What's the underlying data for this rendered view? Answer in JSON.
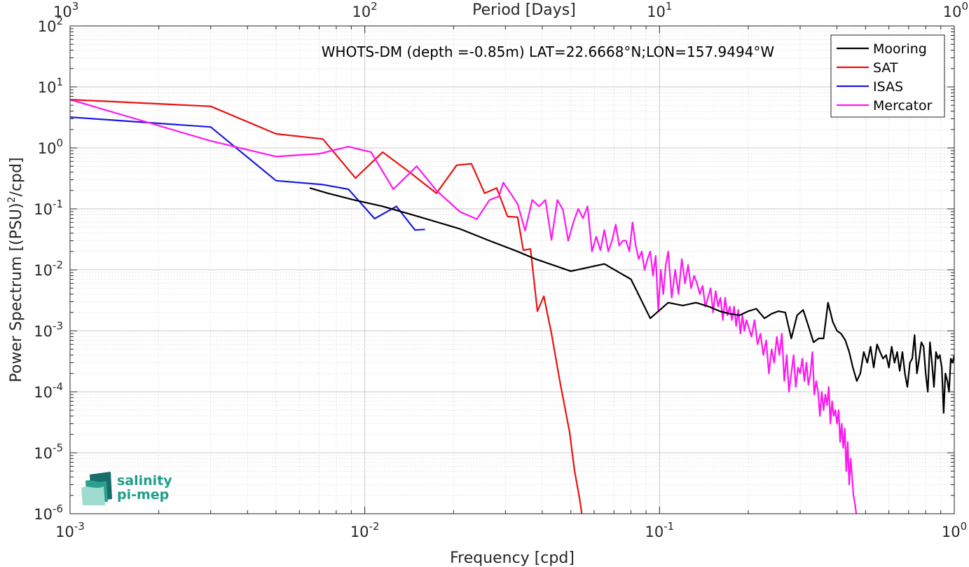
{
  "chart_data": {
    "type": "line",
    "title": "WHOTS-DM (depth =-0.85m) LAT=22.6668°N;LON=157.9494°W",
    "xlabel": "Frequency [cpd]",
    "ylabel_main": "Power Spectrum [(PSU)",
    "ylabel_sup": "2",
    "ylabel_tail": "/cpd]",
    "x2label": "Period [Days]",
    "xscale": "log",
    "yscale": "log",
    "xlim": [
      0.001,
      1
    ],
    "ylim": [
      1e-06,
      100
    ],
    "grid": true,
    "legend_position": "top-right",
    "xticks": [
      {
        "base": "10",
        "exp": "-3"
      },
      {
        "base": "10",
        "exp": "-2"
      },
      {
        "base": "10",
        "exp": "-1"
      },
      {
        "base": "10",
        "exp": "0"
      }
    ],
    "x2ticks": [
      {
        "base": "10",
        "exp": "3"
      },
      {
        "base": "10",
        "exp": "2"
      },
      {
        "base": "10",
        "exp": "1"
      },
      {
        "base": "10",
        "exp": "0"
      }
    ],
    "yticks": [
      {
        "base": "10",
        "exp": "-6"
      },
      {
        "base": "10",
        "exp": "-5"
      },
      {
        "base": "10",
        "exp": "-4"
      },
      {
        "base": "10",
        "exp": "-3"
      },
      {
        "base": "10",
        "exp": "-2"
      },
      {
        "base": "10",
        "exp": "-1"
      },
      {
        "base": "10",
        "exp": "0"
      },
      {
        "base": "10",
        "exp": "1"
      },
      {
        "base": "10",
        "exp": "2"
      }
    ],
    "series": [
      {
        "name": "Mooring",
        "color": "#000000",
        "points": [
          [
            0.0065,
            0.22
          ],
          [
            0.0075,
            0.18
          ],
          [
            0.0092,
            0.14
          ],
          [
            0.0115,
            0.11
          ],
          [
            0.0145,
            0.08
          ],
          [
            0.021,
            0.047
          ],
          [
            0.0265,
            0.03
          ],
          [
            0.033,
            0.02
          ],
          [
            0.038,
            0.015
          ],
          [
            0.05,
            0.0095
          ],
          [
            0.065,
            0.0125
          ],
          [
            0.08,
            0.007
          ],
          [
            0.093,
            0.0016
          ],
          [
            0.107,
            0.0029
          ],
          [
            0.12,
            0.0026
          ],
          [
            0.133,
            0.0029
          ],
          [
            0.147,
            0.0025
          ],
          [
            0.16,
            0.0021
          ],
          [
            0.173,
            0.0019
          ],
          [
            0.187,
            0.0018
          ],
          [
            0.2,
            0.0021
          ],
          [
            0.213,
            0.0023
          ],
          [
            0.227,
            0.0016
          ],
          [
            0.24,
            0.0019
          ],
          [
            0.253,
            0.0021
          ],
          [
            0.267,
            0.002
          ],
          [
            0.28,
            0.00075
          ],
          [
            0.293,
            0.0018
          ],
          [
            0.307,
            0.0022
          ],
          [
            0.32,
            0.0012
          ],
          [
            0.333,
            0.00065
          ],
          [
            0.347,
            0.00075
          ],
          [
            0.36,
            0.00075
          ],
          [
            0.373,
            0.0029
          ],
          [
            0.387,
            0.0014
          ],
          [
            0.4,
            0.001
          ],
          [
            0.413,
            0.0009
          ],
          [
            0.427,
            0.0007
          ],
          [
            0.44,
            0.00045
          ],
          [
            0.453,
            0.00025
          ],
          [
            0.467,
            0.00015
          ],
          [
            0.48,
            0.0002
          ],
          [
            0.493,
            0.00045
          ],
          [
            0.507,
            0.0003
          ],
          [
            0.52,
            0.00055
          ],
          [
            0.533,
            0.00025
          ],
          [
            0.547,
            0.0006
          ],
          [
            0.56,
            0.00045
          ],
          [
            0.573,
            0.00035
          ],
          [
            0.587,
            0.0004
          ],
          [
            0.6,
            0.00025
          ],
          [
            0.613,
            0.00055
          ],
          [
            0.627,
            0.0003
          ],
          [
            0.64,
            0.00045
          ],
          [
            0.653,
            0.00022
          ],
          [
            0.667,
            0.00045
          ],
          [
            0.68,
            0.0002
          ],
          [
            0.693,
            0.00012
          ],
          [
            0.707,
            0.0003
          ],
          [
            0.72,
            0.00035
          ],
          [
            0.733,
            0.00085
          ],
          [
            0.747,
            0.0002
          ],
          [
            0.76,
            0.00035
          ],
          [
            0.773,
            0.00065
          ],
          [
            0.787,
            0.00055
          ],
          [
            0.8,
            0.0002
          ],
          [
            0.813,
            0.0001
          ],
          [
            0.827,
            0.00065
          ],
          [
            0.84,
            0.0003
          ],
          [
            0.853,
            0.00012
          ],
          [
            0.867,
            0.00045
          ],
          [
            0.88,
            0.00035
          ],
          [
            0.893,
            0.0004
          ],
          [
            0.907,
            0.00025
          ],
          [
            0.92,
            4.5e-05
          ],
          [
            0.933,
            0.0002
          ],
          [
            0.947,
            0.00015
          ],
          [
            0.96,
            0.0001
          ],
          [
            0.973,
            0.00035
          ],
          [
            0.987,
            0.0003
          ],
          [
            1.0,
            0.0004
          ]
        ]
      },
      {
        "name": "SAT",
        "color": "#e8120f",
        "points": [
          [
            0.001,
            6.2
          ],
          [
            0.003,
            4.8
          ],
          [
            0.005,
            1.7
          ],
          [
            0.0072,
            1.4
          ],
          [
            0.0093,
            0.32
          ],
          [
            0.0115,
            0.85
          ],
          [
            0.014,
            0.42
          ],
          [
            0.0175,
            0.18
          ],
          [
            0.0205,
            0.52
          ],
          [
            0.023,
            0.55
          ],
          [
            0.0255,
            0.18
          ],
          [
            0.028,
            0.22
          ],
          [
            0.0305,
            0.075
          ],
          [
            0.033,
            0.073
          ],
          [
            0.0345,
            0.021
          ],
          [
            0.0365,
            0.022
          ],
          [
            0.0385,
            0.0021
          ],
          [
            0.0405,
            0.0037
          ],
          [
            0.043,
            0.0009
          ],
          [
            0.046,
            0.00014
          ],
          [
            0.0495,
            2.2e-05
          ],
          [
            0.0515,
            5e-06
          ],
          [
            0.0535,
            1.8e-06
          ],
          [
            0.0545,
            1e-06
          ]
        ]
      },
      {
        "name": "ISAS",
        "color": "#1a1ae0",
        "points": [
          [
            0.001,
            3.2
          ],
          [
            0.003,
            2.2
          ],
          [
            0.005,
            0.29
          ],
          [
            0.0072,
            0.25
          ],
          [
            0.0088,
            0.21
          ],
          [
            0.0108,
            0.069
          ],
          [
            0.0128,
            0.11
          ],
          [
            0.0148,
            0.045
          ],
          [
            0.016,
            0.046
          ]
        ]
      },
      {
        "name": "Mercator",
        "color": "#ff17f0",
        "points": [
          [
            0.001,
            6.2
          ],
          [
            0.003,
            1.3
          ],
          [
            0.005,
            0.72
          ],
          [
            0.007,
            0.8
          ],
          [
            0.0088,
            1.05
          ],
          [
            0.0105,
            0.85
          ],
          [
            0.0125,
            0.21
          ],
          [
            0.015,
            0.5
          ],
          [
            0.0175,
            0.2
          ],
          [
            0.021,
            0.09
          ],
          [
            0.024,
            0.068
          ],
          [
            0.0265,
            0.14
          ],
          [
            0.0285,
            0.16
          ],
          [
            0.0295,
            0.27
          ],
          [
            0.031,
            0.19
          ],
          [
            0.033,
            0.12
          ],
          [
            0.035,
            0.044
          ],
          [
            0.037,
            0.14
          ],
          [
            0.039,
            0.11
          ],
          [
            0.041,
            0.14
          ],
          [
            0.043,
            0.031
          ],
          [
            0.045,
            0.14
          ],
          [
            0.047,
            0.097
          ],
          [
            0.049,
            0.03
          ],
          [
            0.051,
            0.06
          ],
          [
            0.053,
            0.1
          ],
          [
            0.055,
            0.07
          ],
          [
            0.057,
            0.11
          ],
          [
            0.059,
            0.02
          ],
          [
            0.061,
            0.035
          ],
          [
            0.063,
            0.021
          ],
          [
            0.065,
            0.045
          ],
          [
            0.067,
            0.02
          ],
          [
            0.069,
            0.03
          ],
          [
            0.071,
            0.055
          ],
          [
            0.073,
            0.025
          ],
          [
            0.075,
            0.03
          ],
          [
            0.077,
            0.03
          ],
          [
            0.079,
            0.02
          ],
          [
            0.081,
            0.06
          ],
          [
            0.083,
            0.025
          ],
          [
            0.085,
            0.015
          ],
          [
            0.087,
            0.02
          ],
          [
            0.089,
            0.01
          ],
          [
            0.091,
            0.015
          ],
          [
            0.093,
            0.02
          ],
          [
            0.095,
            0.008
          ],
          [
            0.097,
            0.017
          ],
          [
            0.099,
            0.0022
          ],
          [
            0.101,
            0.01
          ],
          [
            0.103,
            0.004
          ],
          [
            0.105,
            0.012
          ],
          [
            0.107,
            0.02
          ],
          [
            0.11,
            0.0035
          ],
          [
            0.113,
            0.01
          ],
          [
            0.116,
            0.004
          ],
          [
            0.119,
            0.015
          ],
          [
            0.122,
            0.006
          ],
          [
            0.125,
            0.012
          ],
          [
            0.128,
            0.005
          ],
          [
            0.131,
            0.008
          ],
          [
            0.134,
            0.006
          ],
          [
            0.137,
            0.004
          ],
          [
            0.14,
            0.0055
          ],
          [
            0.143,
            0.0025
          ],
          [
            0.146,
            0.0035
          ],
          [
            0.149,
            0.005
          ],
          [
            0.152,
            0.002
          ],
          [
            0.155,
            0.0045
          ],
          [
            0.158,
            0.0025
          ],
          [
            0.161,
            0.0035
          ],
          [
            0.164,
            0.0015
          ],
          [
            0.167,
            0.0035
          ],
          [
            0.17,
            0.0018
          ],
          [
            0.173,
            0.0025
          ],
          [
            0.176,
            0.0015
          ],
          [
            0.179,
            0.0025
          ],
          [
            0.182,
            0.0012
          ],
          [
            0.185,
            0.0022
          ],
          [
            0.188,
            0.0009
          ],
          [
            0.191,
            0.0018
          ],
          [
            0.194,
            0.001
          ],
          [
            0.197,
            0.0015
          ],
          [
            0.2,
            0.0012
          ],
          [
            0.205,
            0.0008
          ],
          [
            0.21,
            0.0015
          ],
          [
            0.215,
            0.0006
          ],
          [
            0.22,
            0.0009
          ],
          [
            0.225,
            0.0004
          ],
          [
            0.23,
            0.0007
          ],
          [
            0.235,
            0.0002
          ],
          [
            0.24,
            0.0005
          ],
          [
            0.245,
            0.0003
          ],
          [
            0.25,
            0.0008
          ],
          [
            0.255,
            0.0004
          ],
          [
            0.26,
            0.0009
          ],
          [
            0.265,
            0.00015
          ],
          [
            0.27,
            0.0004
          ],
          [
            0.275,
            0.0001
          ],
          [
            0.28,
            0.0002
          ],
          [
            0.285,
            0.0004
          ],
          [
            0.29,
            0.00012
          ],
          [
            0.295,
            0.00025
          ],
          [
            0.3,
            0.0002
          ],
          [
            0.305,
            0.00035
          ],
          [
            0.31,
            0.00015
          ],
          [
            0.315,
            0.0003
          ],
          [
            0.32,
            0.00013
          ],
          [
            0.325,
            0.0002
          ],
          [
            0.33,
            0.00045
          ],
          [
            0.335,
            9e-05
          ],
          [
            0.34,
            0.00015
          ],
          [
            0.345,
            0.0001
          ],
          [
            0.35,
            4e-05
          ],
          [
            0.355,
            0.0001
          ],
          [
            0.36,
            5e-05
          ],
          [
            0.365,
            9e-05
          ],
          [
            0.37,
            6e-05
          ],
          [
            0.375,
            0.00012
          ],
          [
            0.38,
            3e-05
          ],
          [
            0.385,
            7e-05
          ],
          [
            0.39,
            4e-05
          ],
          [
            0.395,
            5e-05
          ],
          [
            0.4,
            3e-05
          ],
          [
            0.405,
            5e-05
          ],
          [
            0.41,
            1.5e-05
          ],
          [
            0.415,
            3e-05
          ],
          [
            0.42,
            1.2e-05
          ],
          [
            0.425,
            2.5e-05
          ],
          [
            0.43,
            5e-06
          ],
          [
            0.435,
            1.5e-05
          ],
          [
            0.44,
            3e-06
          ],
          [
            0.445,
            8e-06
          ],
          [
            0.45,
            4e-06
          ],
          [
            0.455,
            2e-06
          ],
          [
            0.46,
            1.5e-06
          ],
          [
            0.465,
            1e-06
          ]
        ]
      }
    ]
  },
  "logo": {
    "line1": "salinity",
    "line2": "pi-mep",
    "colors": [
      "#5cc6b0",
      "#2aa08f",
      "#176d67",
      "#9fdccf"
    ]
  }
}
